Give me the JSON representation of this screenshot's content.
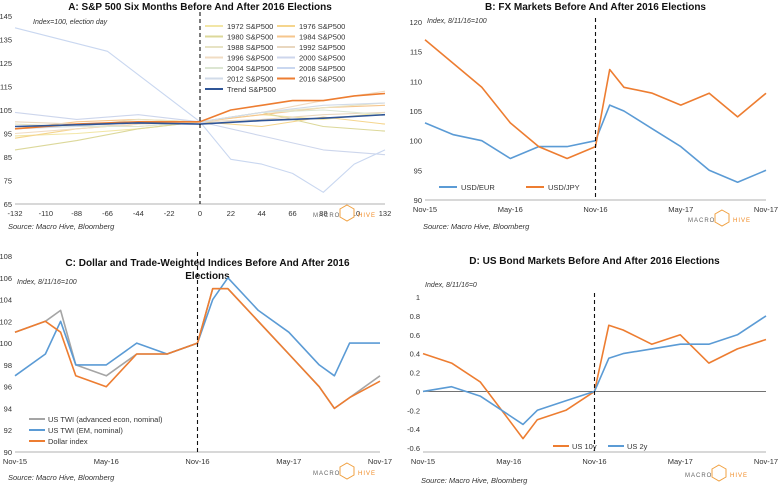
{
  "macro_hive_logo": {
    "left": "MACRO",
    "right": "HIVE"
  },
  "chart_data": [
    {
      "id": "A",
      "type": "line",
      "title": "A: S&P 500 Six Months Before And After 2016 Elections",
      "note": "Index=100, election day",
      "source": "Source: Macro Hive, Bloomberg",
      "xlim": [
        -132,
        132
      ],
      "x_ticks": [
        -132,
        -110,
        -88,
        -66,
        -44,
        -22,
        0,
        22,
        44,
        66,
        88,
        110,
        132
      ],
      "ylim": [
        65,
        145
      ],
      "y_ticks": [
        65,
        75,
        85,
        95,
        105,
        115,
        125,
        135,
        145
      ],
      "event_line_x": 0,
      "legend": [
        "1972 S&P500",
        "1976 S&P500",
        "1980 S&P500",
        "1984 S&P500",
        "1988 S&P500",
        "1992 S&P500",
        "1996 S&P500",
        "2000 S&P500",
        "2004 S&P500",
        "2008 S&P500",
        "2012 S&P500",
        "2016 S&P500",
        "Trend S&P500"
      ],
      "series": [
        {
          "name": "1972 S&P500",
          "color": "#f2e6a6",
          "x": [
            -132,
            -88,
            -44,
            0,
            44,
            88,
            132
          ],
          "y": [
            94,
            95,
            97,
            100,
            103,
            101,
            104
          ]
        },
        {
          "name": "1976 S&P500",
          "color": "#f5d58d",
          "x": [
            -132,
            -88,
            -44,
            0,
            44,
            88,
            132
          ],
          "y": [
            93,
            97,
            99,
            100,
            98,
            102,
            99
          ]
        },
        {
          "name": "1980 S&P500",
          "color": "#dcd89a",
          "x": [
            -132,
            -88,
            -44,
            0,
            44,
            88,
            132
          ],
          "y": [
            88,
            92,
            97,
            100,
            104,
            98,
            96
          ]
        },
        {
          "name": "1984 S&P500",
          "color": "#f6c68c",
          "x": [
            -132,
            -88,
            -44,
            0,
            44,
            88,
            132
          ],
          "y": [
            97,
            100,
            101,
            100,
            103,
            106,
            107
          ]
        },
        {
          "name": "1988 S&P500",
          "color": "#e7e3c4",
          "x": [
            -132,
            -88,
            -44,
            0,
            44,
            88,
            132
          ],
          "y": [
            99,
            98,
            101,
            100,
            104,
            106,
            108
          ]
        },
        {
          "name": "1992 S&P500",
          "color": "#e9d7bf",
          "x": [
            -132,
            -88,
            -44,
            0,
            44,
            88,
            132
          ],
          "y": [
            100,
            99,
            98,
            100,
            101,
            103,
            104
          ]
        },
        {
          "name": "1996 S&P500",
          "color": "#f1dcc3",
          "x": [
            -132,
            -88,
            -44,
            0,
            44,
            88,
            132
          ],
          "y": [
            95,
            97,
            99,
            100,
            104,
            109,
            113
          ]
        },
        {
          "name": "2000 S&P500",
          "color": "#cdd6ec",
          "x": [
            -132,
            -88,
            -44,
            0,
            44,
            88,
            132
          ],
          "y": [
            104,
            101,
            103,
            100,
            94,
            88,
            86
          ]
        },
        {
          "name": "2004 S&P500",
          "color": "#dce6d2",
          "x": [
            -132,
            -88,
            -44,
            0,
            44,
            88,
            132
          ],
          "y": [
            98,
            98,
            98,
            100,
            104,
            105,
            103
          ]
        },
        {
          "name": "2008 S&P500",
          "color": "#c9d7f0",
          "x": [
            -132,
            -66,
            -22,
            0,
            22,
            44,
            66,
            88,
            110,
            132
          ],
          "y": [
            140,
            130,
            110,
            100,
            84,
            82,
            78,
            70,
            82,
            88
          ]
        },
        {
          "name": "2012 S&P500",
          "color": "#d1dbe9",
          "x": [
            -132,
            -88,
            -44,
            0,
            44,
            88,
            132
          ],
          "y": [
            97,
            98,
            100,
            100,
            104,
            107,
            108
          ]
        },
        {
          "name": "2016 S&P500",
          "color": "#ed7d31",
          "x": [
            -132,
            -88,
            -44,
            0,
            22,
            44,
            66,
            88,
            110,
            132
          ],
          "y": [
            97,
            99,
            100,
            100,
            105,
            107,
            109,
            109,
            111,
            112
          ]
        },
        {
          "name": "Trend S&P500",
          "color": "#2f5597",
          "x": [
            -132,
            -88,
            -44,
            0,
            44,
            88,
            132
          ],
          "y": [
            98,
            98.7,
            99.5,
            99,
            100.5,
            101.5,
            103
          ]
        }
      ]
    },
    {
      "id": "B",
      "type": "line",
      "title": "B: FX Markets Before And After 2016 Elections",
      "note": "Index, 8/11/16=100",
      "source": "Source: Macro Hive, Bloomberg",
      "x_categories": [
        "Nov-15",
        "May-16",
        "Nov-16",
        "May-17",
        "Nov-17"
      ],
      "xlim": [
        0,
        24
      ],
      "ylim": [
        90,
        120
      ],
      "y_ticks": [
        90,
        95,
        100,
        105,
        110,
        115,
        120
      ],
      "event_line_x": 12,
      "legend": [
        "USD/EUR",
        "USD/JPY"
      ],
      "series": [
        {
          "name": "USD/EUR",
          "color": "#5b9bd5",
          "x": [
            0,
            2,
            4,
            6,
            8,
            10,
            12,
            13,
            14,
            16,
            18,
            20,
            22,
            24
          ],
          "y": [
            103,
            101,
            100,
            97,
            99,
            99,
            100,
            106,
            105,
            102,
            99,
            95,
            93,
            95
          ]
        },
        {
          "name": "USD/JPY",
          "color": "#ed7d31",
          "x": [
            0,
            2,
            4,
            6,
            8,
            10,
            12,
            13,
            14,
            16,
            18,
            20,
            22,
            24
          ],
          "y": [
            117,
            113,
            109,
            103,
            99,
            97,
            99,
            112,
            109,
            108,
            106,
            108,
            104,
            108
          ]
        }
      ]
    },
    {
      "id": "C",
      "type": "line",
      "title": "C: Dollar and Trade-Weighted Indices Before And After 2016 Elections",
      "note": "Index, 8/11/16=100",
      "source": "Source: Macro Hive, Bloomberg",
      "x_categories": [
        "Nov-15",
        "May-16",
        "Nov-16",
        "May-17",
        "Nov-17"
      ],
      "xlim": [
        0,
        24
      ],
      "ylim": [
        90,
        108
      ],
      "y_ticks": [
        90,
        92,
        94,
        96,
        98,
        100,
        102,
        104,
        106,
        108
      ],
      "event_line_x": 12,
      "legend": [
        "US TWI (advanced econ, nominal)",
        "US TWI (EM, nominal)",
        "Dollar index"
      ],
      "series": [
        {
          "name": "US TWI (advanced econ, nominal)",
          "color": "#a5a5a5",
          "x": [
            0,
            2,
            3,
            4,
            6,
            8,
            10,
            12,
            13,
            14,
            16,
            18,
            20,
            21,
            22,
            24
          ],
          "y": [
            101,
            102,
            103,
            98,
            97,
            99,
            99,
            100,
            105,
            105,
            102,
            99,
            96,
            94,
            95,
            97
          ]
        },
        {
          "name": "US TWI (EM, nominal)",
          "color": "#5b9bd5",
          "x": [
            0,
            2,
            3,
            4,
            6,
            8,
            10,
            12,
            13,
            14,
            16,
            18,
            20,
            21,
            22,
            24
          ],
          "y": [
            97,
            99,
            102,
            98,
            98,
            100,
            99,
            100,
            104,
            106,
            103,
            101,
            98,
            97,
            100,
            100
          ]
        },
        {
          "name": "Dollar index",
          "color": "#ed7d31",
          "x": [
            0,
            2,
            3,
            4,
            6,
            8,
            10,
            12,
            13,
            14,
            16,
            18,
            20,
            21,
            22,
            24
          ],
          "y": [
            101,
            102,
            101,
            97,
            96,
            99,
            99,
            100,
            105,
            105,
            102,
            99,
            96,
            94,
            95,
            96.5
          ]
        }
      ]
    },
    {
      "id": "D",
      "type": "line",
      "title": "D: US Bond Markets Before And After 2016 Elections",
      "note": "Index, 8/11/16=0",
      "source": "Source: Macro Hive, Bloomberg",
      "x_categories": [
        "Nov-15",
        "May-16",
        "Nov-16",
        "May-17",
        "Nov-17"
      ],
      "xlim": [
        0,
        24
      ],
      "ylim": [
        -0.6,
        1.0
      ],
      "y_ticks": [
        -0.6,
        -0.4,
        -0.2,
        0,
        0.2,
        0.4,
        0.6,
        0.8,
        1.0
      ],
      "event_line_x": 12,
      "legend": [
        "US 10y",
        "US 2y"
      ],
      "series": [
        {
          "name": "US 10y",
          "color": "#ed7d31",
          "x": [
            0,
            2,
            4,
            6,
            7,
            8,
            10,
            12,
            13,
            14,
            16,
            18,
            20,
            22,
            24
          ],
          "y": [
            0.4,
            0.3,
            0.1,
            -0.3,
            -0.5,
            -0.3,
            -0.2,
            0,
            0.7,
            0.65,
            0.5,
            0.6,
            0.3,
            0.45,
            0.55
          ]
        },
        {
          "name": "US 2y",
          "color": "#5b9bd5",
          "x": [
            0,
            2,
            4,
            6,
            7,
            8,
            10,
            12,
            13,
            14,
            16,
            18,
            20,
            22,
            24
          ],
          "y": [
            0,
            0.05,
            -0.05,
            -0.25,
            -0.35,
            -0.2,
            -0.1,
            0,
            0.35,
            0.4,
            0.45,
            0.5,
            0.5,
            0.6,
            0.8
          ]
        }
      ]
    }
  ]
}
